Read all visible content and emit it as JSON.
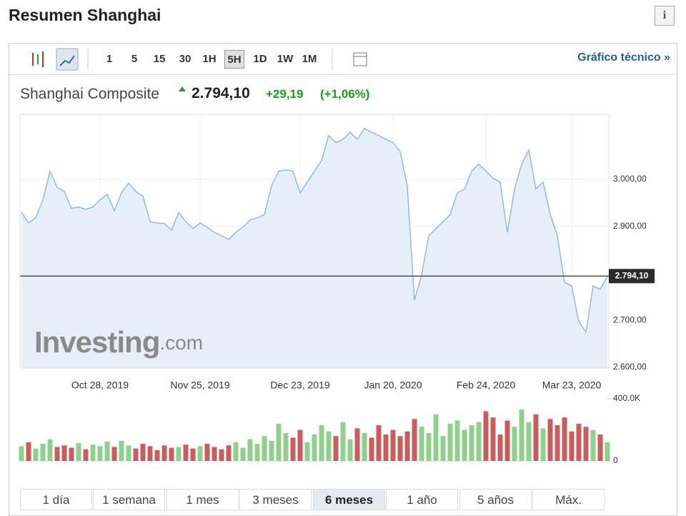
{
  "header": {
    "title": "Resumen Shanghai"
  },
  "toolbar": {
    "intervals": [
      "1",
      "5",
      "15",
      "30",
      "1H",
      "5H",
      "1D",
      "1W",
      "1M"
    ],
    "link": "Gráfico técnico »"
  },
  "quote": {
    "name": "Shanghai Composite",
    "price": "2.794,10",
    "change": "+29,19",
    "change_pct": "(+1,06%)"
  },
  "watermark": {
    "brand": "Investing",
    "suffix": ".com"
  },
  "periods": [
    "1 día",
    "1 semana",
    "1 mes",
    "3 meses",
    "6 meses",
    "1 año",
    "5 años",
    "Máx."
  ],
  "chart_data": [
    {
      "type": "area",
      "color": "#8fb6dc",
      "fill": "#e6eef7",
      "categories": [
        null,
        null,
        null,
        null,
        null,
        null,
        null,
        null,
        null,
        null,
        null,
        "Oct 28, 2019",
        null,
        null,
        null,
        null,
        null,
        null,
        null,
        null,
        null,
        null,
        null,
        null,
        null,
        "Nov 25, 2019",
        null,
        null,
        null,
        null,
        null,
        null,
        null,
        null,
        null,
        null,
        null,
        null,
        null,
        "Dec 23, 2019",
        null,
        null,
        null,
        null,
        null,
        null,
        null,
        null,
        null,
        null,
        null,
        null,
        "Jan 20, 2020",
        null,
        null,
        null,
        null,
        null,
        null,
        null,
        null,
        null,
        null,
        null,
        null,
        "Feb 24, 2020",
        null,
        null,
        null,
        null,
        null,
        null,
        null,
        null,
        null,
        null,
        null,
        "Mar 23, 2020",
        null,
        null,
        null,
        null,
        null
      ],
      "values": [
        2930,
        2907,
        2918,
        2956,
        3017,
        2983,
        2974,
        2938,
        2941,
        2936,
        2941,
        2956,
        2968,
        2933,
        2971,
        2992,
        2974,
        2964,
        2910,
        2907,
        2906,
        2892,
        2929,
        2910,
        2895,
        2907,
        2898,
        2887,
        2880,
        2872,
        2887,
        2898,
        2913,
        2918,
        2925,
        2986,
        3017,
        3020,
        3017,
        2971,
        2994,
        3017,
        3040,
        3093,
        3078,
        3085,
        3100,
        3085,
        3108,
        3100,
        3093,
        3085,
        3078,
        3059,
        2986,
        2743,
        2796,
        2880,
        2895,
        2910,
        2925,
        2971,
        2979,
        3017,
        3032,
        3017,
        3002,
        2994,
        2887,
        2979,
        3032,
        3062,
        2979,
        2994,
        2925,
        2880,
        2781,
        2773,
        2697,
        2675,
        2773,
        2766,
        2794.1
      ],
      "ylim": [
        2600,
        3138
      ],
      "yticks": [
        {
          "value": 2600,
          "label": "2.600,00"
        },
        {
          "value": 2700,
          "label": "2.700,00"
        },
        {
          "value": 2900,
          "label": "2.900,00"
        },
        {
          "value": 3000,
          "label": "3.000,00"
        }
      ],
      "reference": {
        "value": 2794.1,
        "label": "2.794,10"
      },
      "grid": true
    },
    {
      "type": "bar",
      "up_color": "#8fd08f",
      "down_color": "#c95c5c",
      "values": [
        95000,
        120000,
        80000,
        110000,
        140000,
        90000,
        100000,
        85000,
        115000,
        75000,
        105000,
        95000,
        125000,
        90000,
        130000,
        100000,
        80000,
        110000,
        95000,
        70000,
        100000,
        85000,
        90000,
        105000,
        80000,
        95000,
        110000,
        90000,
        75000,
        100000,
        120000,
        85000,
        140000,
        110000,
        160000,
        130000,
        240000,
        180000,
        150000,
        200000,
        120000,
        170000,
        230000,
        190000,
        160000,
        250000,
        140000,
        210000,
        180000,
        150000,
        230000,
        170000,
        200000,
        160000,
        190000,
        270000,
        220000,
        180000,
        300000,
        160000,
        240000,
        260000,
        200000,
        230000,
        250000,
        320000,
        280000,
        170000,
        260000,
        220000,
        330000,
        250000,
        300000,
        210000,
        270000,
        230000,
        280000,
        190000,
        240000,
        220000,
        200000,
        170000,
        120000
      ],
      "ylim": [
        0,
        400000
      ],
      "yticks": [
        {
          "value": 0,
          "label": "0"
        },
        {
          "value": 400000,
          "label": "400.0K"
        }
      ]
    }
  ]
}
